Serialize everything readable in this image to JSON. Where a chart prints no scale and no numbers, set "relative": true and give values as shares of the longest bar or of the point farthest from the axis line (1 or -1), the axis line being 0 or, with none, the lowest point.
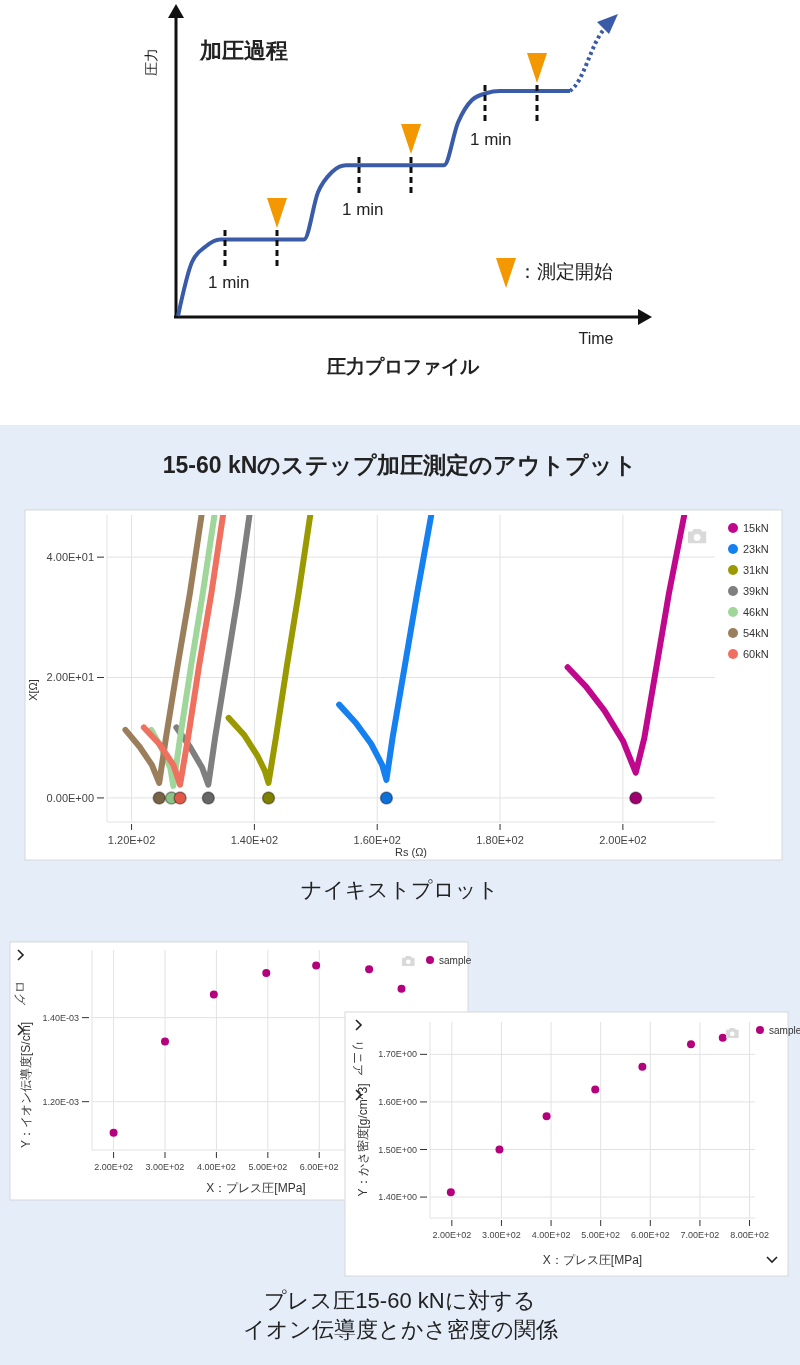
{
  "chart_data": [
    {
      "type": "line",
      "relative": true,
      "title": "加圧過程",
      "ylabel": "圧力",
      "xlabel": "Time",
      "categories": [
        null,
        null,
        null,
        null,
        null,
        null,
        null,
        null,
        null,
        null,
        null,
        null,
        null,
        null,
        null,
        null,
        null,
        null,
        null,
        null,
        null,
        null,
        null,
        null,
        null,
        null,
        null,
        null,
        null
      ],
      "series": [
        {
          "color": "#3a5ba8",
          "values": [
            0,
            0.24,
            0.31,
            0.34,
            0.34,
            0.34,
            0.34,
            0.34,
            0.34,
            0.34,
            0.55,
            0.64,
            0.67,
            0.67,
            0.67,
            0.67,
            0.67,
            0.67,
            0.67,
            0.67,
            0.86,
            0.96,
            0.99,
            1,
            1,
            1,
            1,
            1,
            1
          ]
        }
      ],
      "annotations": [
        "1 min",
        "1 min",
        "1 min",
        "：測定開始",
        "圧力プロファイル"
      ]
    },
    {
      "type": "line",
      "title": "15-60 kNのステップ加圧測定のアウトプット",
      "xlabel": "Rs (Ω)",
      "ylabel": "X[Ω]",
      "xlim": [
        116,
        215
      ],
      "ylim": [
        -4,
        47
      ],
      "xticks": [
        {
          "value": 120,
          "label": "1.20E+02"
        },
        {
          "value": 140,
          "label": "1.40E+02"
        },
        {
          "value": 160,
          "label": "1.60E+02"
        },
        {
          "value": 180,
          "label": "1.80E+02"
        },
        {
          "value": 200,
          "label": "2.00E+02"
        }
      ],
      "yticks": [
        {
          "value": 0,
          "label": "0.00E+00"
        },
        {
          "value": 20,
          "label": "2.00E+01"
        },
        {
          "value": 40,
          "label": "4.00E+01"
        }
      ],
      "grid": true,
      "legend": "right",
      "series": [
        {
          "name": "15kN",
          "color": "#c0088c",
          "x": [
            191,
            194,
            197,
            200,
            202.1,
            203.5,
            205.5,
            207.5,
            210
          ],
          "values": [
            21.7,
            18.5,
            14.5,
            9.5,
            4.2,
            10,
            22,
            34,
            47
          ]
        },
        {
          "name": "23kN",
          "color": "#1580f0",
          "x": [
            153.8,
            156.5,
            159,
            160.8,
            161.5,
            162.5,
            164.5,
            166.5,
            168.8
          ],
          "values": [
            15.5,
            12.5,
            9,
            5.5,
            3,
            10,
            22,
            34,
            47
          ]
        },
        {
          "name": "31kN",
          "color": "#9a9a00",
          "x": [
            135.8,
            138.3,
            140.5,
            141.7,
            142.3,
            143.5,
            145.3,
            147.2,
            149.1
          ],
          "values": [
            13.3,
            10.5,
            7,
            4.5,
            2.5,
            10,
            22,
            34,
            47
          ]
        },
        {
          "name": "39kN",
          "color": "#7f7f7f",
          "x": [
            127.3,
            129.5,
            131.5,
            132.5,
            133.6,
            135.5,
            137.4,
            139.2
          ],
          "values": [
            11.7,
            8.5,
            5,
            2.2,
            10,
            22,
            34,
            47
          ]
        },
        {
          "name": "46kN",
          "color": "#9fd69a",
          "x": [
            123.2,
            125,
            126.3,
            126.8,
            127.9,
            129.7,
            131.6,
            133.5
          ],
          "values": [
            11.3,
            8,
            5,
            2,
            10,
            22,
            34,
            47
          ]
        },
        {
          "name": "54kN",
          "color": "#9b7f5c",
          "x": [
            119,
            121.3,
            123.3,
            124.5,
            125.6,
            127.5,
            129.5,
            131.4
          ],
          "values": [
            11.3,
            8.5,
            5.5,
            2.5,
            10,
            22,
            34,
            47
          ]
        },
        {
          "name": "60kN",
          "color": "#f07060",
          "x": [
            122,
            124.5,
            126.8,
            127.9,
            129.2,
            131,
            133,
            134.9
          ],
          "values": [
            11.7,
            9,
            5.5,
            2.2,
            10,
            22,
            34,
            47
          ]
        },
        {
          "type": "scatter",
          "marker": "circle",
          "x": [
            124.5,
            126.5,
            127.9,
            132.5,
            142.3,
            161.5,
            202.1
          ],
          "values": [
            0,
            0,
            0,
            0,
            0,
            0,
            0
          ],
          "colors": [
            "#7a6446",
            "#8cc487",
            "#e05a4a",
            "#666666",
            "#7f7f00",
            "#0d6fd8",
            "#a0006f"
          ]
        }
      ],
      "annotations": [
        "ナイキストプロット"
      ]
    },
    {
      "type": "scatter",
      "xlabel": "X：プレス圧[MPa]",
      "ylabel": "Y：イオン伝導度[S/cm]",
      "xlim": [
        158,
        796
      ],
      "ylim": [
        0.001085,
        0.001561
      ],
      "xticks": [
        {
          "value": 200,
          "label": "2.00E+02"
        },
        {
          "value": 300,
          "label": "3.00E+02"
        },
        {
          "value": 400,
          "label": "4.00E+02"
        },
        {
          "value": 500,
          "label": "5.00E+02"
        },
        {
          "value": 600,
          "label": "6.00E+02"
        }
      ],
      "yticks": [
        {
          "value": 0.0012,
          "label": "1.20E-03"
        },
        {
          "value": 0.0014,
          "label": "1.40E-03"
        }
      ],
      "grid": true,
      "legend": "top right",
      "marker": "circle",
      "series": [
        {
          "name": "sample",
          "color": "#b5007e",
          "x": [
            200,
            300,
            395,
            497,
            594,
            697,
            760
          ],
          "values": [
            0.001126,
            0.001343,
            0.001455,
            0.001506,
            0.001524,
            0.001515,
            0.001469
          ]
        }
      ],
      "annotations": [
        "ログ"
      ]
    },
    {
      "type": "scatter",
      "xlabel": "X：プレス圧[MPa]",
      "ylabel": "Y：かさ密度[g/cm^3]",
      "xlim": [
        156,
        811
      ],
      "ylim": [
        1.356,
        1.768
      ],
      "xticks": [
        {
          "value": 200,
          "label": "2.00E+02"
        },
        {
          "value": 300,
          "label": "3.00E+02"
        },
        {
          "value": 400,
          "label": "4.00E+02"
        },
        {
          "value": 500,
          "label": "5.00E+02"
        },
        {
          "value": 600,
          "label": "6.00E+02"
        },
        {
          "value": 700,
          "label": "7.00E+02"
        },
        {
          "value": 800,
          "label": "8.00E+02"
        }
      ],
      "yticks": [
        {
          "value": 1.4,
          "label": "1.40E+00"
        },
        {
          "value": 1.5,
          "label": "1.50E+00"
        },
        {
          "value": 1.6,
          "label": "1.60E+00"
        },
        {
          "value": 1.7,
          "label": "1.70E+00"
        }
      ],
      "grid": true,
      "legend": "top right",
      "marker": "circle",
      "series": [
        {
          "name": "sample",
          "color": "#b5007e",
          "x": [
            198,
            296,
            391,
            489,
            584,
            682,
            746
          ],
          "values": [
            1.41,
            1.5,
            1.57,
            1.626,
            1.674,
            1.721,
            1.735
          ]
        }
      ],
      "annotations": [
        "リニア",
        "プレス圧15-60 kNに対する",
        "イオン伝導度とかさ密度の関係"
      ]
    }
  ]
}
